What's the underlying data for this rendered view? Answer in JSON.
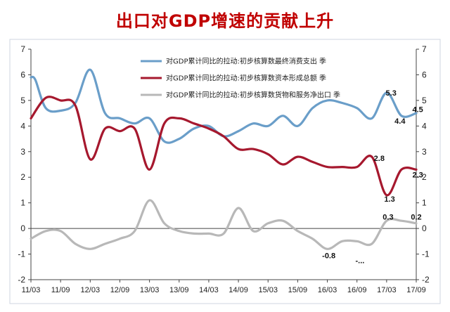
{
  "title": "出口对GDP增速的贡献上升",
  "chart_data": {
    "type": "line",
    "ylim": [
      -2,
      7
    ],
    "yticks": [
      "-2",
      "-1",
      "0",
      "1",
      "2",
      "3",
      "4",
      "5",
      "6",
      "7"
    ],
    "xticks": [
      "11/03",
      "11/09",
      "12/03",
      "12/09",
      "13/03",
      "13/09",
      "14/03",
      "14/09",
      "15/03",
      "15/09",
      "16/03",
      "16/09",
      "17/03",
      "17/09"
    ],
    "grid": false,
    "legend_position": "top-center",
    "series": [
      {
        "name": "对GDP累计同比的拉动:初步核算数最终消费支出 季",
        "color": "#6a9ec9",
        "points": [
          [
            0,
            5.9
          ],
          [
            0.15,
            5.8
          ],
          [
            0.5,
            4.7
          ],
          [
            1.0,
            4.6
          ],
          [
            1.5,
            4.9
          ],
          [
            2.0,
            6.2
          ],
          [
            2.5,
            4.5
          ],
          [
            3.0,
            4.3
          ],
          [
            3.5,
            4.1
          ],
          [
            4.0,
            4.3
          ],
          [
            4.5,
            3.4
          ],
          [
            5.0,
            3.5
          ],
          [
            5.5,
            3.9
          ],
          [
            6.0,
            4.0
          ],
          [
            6.5,
            3.6
          ],
          [
            7.0,
            3.8
          ],
          [
            7.5,
            4.1
          ],
          [
            8.0,
            4.0
          ],
          [
            8.5,
            4.4
          ],
          [
            9.0,
            4.0
          ],
          [
            9.5,
            4.7
          ],
          [
            10.0,
            5.0
          ],
          [
            10.5,
            4.9
          ],
          [
            11.0,
            4.7
          ],
          [
            11.5,
            4.3
          ],
          [
            12.0,
            5.3
          ],
          [
            12.5,
            4.4
          ],
          [
            13.0,
            4.5
          ]
        ]
      },
      {
        "name": "对GDP累计同比的拉动:初步核算数资本形成总额 季",
        "color": "#a6182e",
        "points": [
          [
            0,
            4.3
          ],
          [
            0.5,
            5.1
          ],
          [
            1.0,
            5.0
          ],
          [
            1.5,
            4.8
          ],
          [
            2.0,
            2.7
          ],
          [
            2.5,
            3.9
          ],
          [
            3.0,
            3.8
          ],
          [
            3.5,
            3.9
          ],
          [
            4.0,
            2.3
          ],
          [
            4.5,
            4.1
          ],
          [
            5.0,
            4.3
          ],
          [
            5.5,
            4.1
          ],
          [
            6.0,
            3.9
          ],
          [
            6.5,
            3.6
          ],
          [
            7.0,
            3.1
          ],
          [
            7.5,
            3.1
          ],
          [
            8.0,
            2.9
          ],
          [
            8.5,
            2.5
          ],
          [
            9.0,
            2.8
          ],
          [
            9.5,
            2.6
          ],
          [
            10.0,
            2.4
          ],
          [
            10.5,
            2.4
          ],
          [
            11.0,
            2.4
          ],
          [
            11.5,
            2.8
          ],
          [
            12.0,
            1.3
          ],
          [
            12.5,
            2.3
          ],
          [
            13.0,
            2.3
          ]
        ]
      },
      {
        "name": "对GDP累计同比的拉动:初步核算数货物和服务净出口 季",
        "color": "#b8b8b8",
        "points": [
          [
            0,
            -0.4
          ],
          [
            0.5,
            -0.1
          ],
          [
            1.0,
            -0.1
          ],
          [
            1.5,
            -0.6
          ],
          [
            2.0,
            -0.8
          ],
          [
            2.5,
            -0.6
          ],
          [
            3.0,
            -0.4
          ],
          [
            3.5,
            -0.1
          ],
          [
            4.0,
            1.1
          ],
          [
            4.5,
            0.2
          ],
          [
            5.0,
            -0.1
          ],
          [
            5.5,
            -0.2
          ],
          [
            6.0,
            -0.2
          ],
          [
            6.5,
            -0.2
          ],
          [
            7.0,
            0.8
          ],
          [
            7.5,
            -0.1
          ],
          [
            8.0,
            0.2
          ],
          [
            8.5,
            0.3
          ],
          [
            9.0,
            -0.1
          ],
          [
            9.5,
            -0.4
          ],
          [
            10.0,
            -0.8
          ],
          [
            10.5,
            -0.5
          ],
          [
            11.0,
            -0.5
          ],
          [
            11.5,
            -0.6
          ],
          [
            12.0,
            0.3
          ],
          [
            12.5,
            0.3
          ],
          [
            13.0,
            0.2
          ]
        ]
      }
    ],
    "data_labels": [
      {
        "text": "5.3",
        "x": 12.15,
        "y": 5.3
      },
      {
        "text": "4.5",
        "x": 13.05,
        "y": 4.65
      },
      {
        "text": "4.4",
        "x": 12.45,
        "y": 4.2
      },
      {
        "text": "2.8",
        "x": 11.75,
        "y": 2.75
      },
      {
        "text": "2.3",
        "x": 13.05,
        "y": 2.1
      },
      {
        "text": "1.3",
        "x": 12.1,
        "y": 1.15
      },
      {
        "text": "0.3",
        "x": 12.05,
        "y": 0.45
      },
      {
        "text": "0.2",
        "x": 13.0,
        "y": 0.45
      },
      {
        "text": "-0.8",
        "x": 10.05,
        "y": -1.05
      },
      {
        "text": "-...",
        "x": 11.1,
        "y": -1.25
      }
    ]
  }
}
